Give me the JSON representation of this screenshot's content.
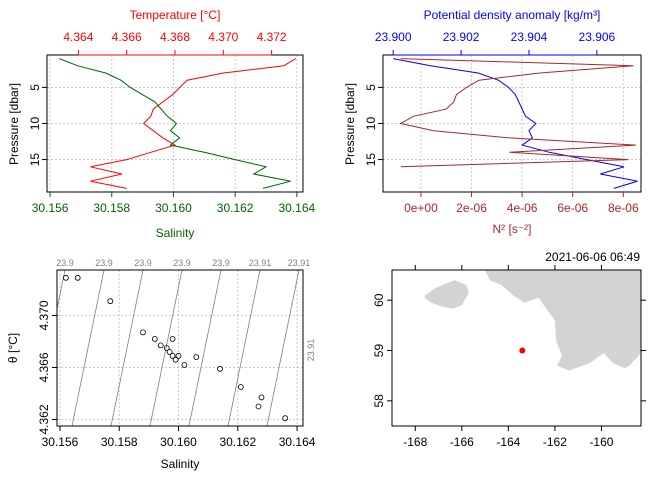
{
  "colors": {
    "temperature": "#ff0000",
    "salinity": "#006400",
    "density": "#0000ff",
    "n2": "#a52a2a",
    "land": "#d3d3d3",
    "station": "#ff0000",
    "grid": "#c8c8c8",
    "isopycnal": "#7f7f7f"
  },
  "chart_data": [
    {
      "type": "line",
      "panel": "temperature-salinity-profile",
      "title": "",
      "ylabel": "Pressure [dbar]",
      "ylim": [
        0.5,
        19.5
      ],
      "yticks": [
        "5",
        "10",
        "15"
      ],
      "grid": true,
      "top_axis": {
        "label": "Temperature [°C]",
        "lim": [
          4.3627,
          4.3733
        ],
        "ticks": [
          "4.364",
          "4.366",
          "4.368",
          "4.370",
          "4.372"
        ]
      },
      "bottom_axis": {
        "label": "Salinity",
        "lim": [
          30.1559,
          30.1642
        ],
        "ticks": [
          "30.156",
          "30.158",
          "30.160",
          "30.162",
          "30.164"
        ]
      },
      "series": [
        {
          "name": "Temperature [°C]",
          "axis": "top",
          "points": [
            [
              4.373,
              1
            ],
            [
              4.3725,
              2
            ],
            [
              4.37,
              3
            ],
            [
              4.3685,
              4
            ],
            [
              4.3682,
              5
            ],
            [
              4.3679,
              6
            ],
            [
              4.3675,
              7
            ],
            [
              4.3671,
              8
            ],
            [
              4.367,
              9
            ],
            [
              4.3667,
              10
            ],
            [
              4.3671,
              11
            ],
            [
              4.3675,
              12
            ],
            [
              4.368,
              13
            ],
            [
              4.367,
              14
            ],
            [
              4.366,
              15
            ],
            [
              4.3645,
              16
            ],
            [
              4.3658,
              17
            ],
            [
              4.3645,
              18
            ],
            [
              4.366,
              19
            ]
          ]
        },
        {
          "name": "Salinity",
          "axis": "bottom",
          "points": [
            [
              30.1563,
              1
            ],
            [
              30.1569,
              2
            ],
            [
              30.1578,
              3
            ],
            [
              30.1583,
              4
            ],
            [
              30.1586,
              5
            ],
            [
              30.159,
              6
            ],
            [
              30.1594,
              7
            ],
            [
              30.1596,
              8
            ],
            [
              30.1598,
              9
            ],
            [
              30.1601,
              10
            ],
            [
              30.1599,
              11
            ],
            [
              30.1602,
              12
            ],
            [
              30.1599,
              13
            ],
            [
              30.161,
              14
            ],
            [
              30.162,
              15
            ],
            [
              30.163,
              16
            ],
            [
              30.1626,
              17
            ],
            [
              30.1638,
              18
            ],
            [
              30.1629,
              19
            ]
          ]
        }
      ]
    },
    {
      "type": "line",
      "panel": "density-n2-profile",
      "title": "",
      "ylabel": "Pressure [dbar]",
      "ylim": [
        0.5,
        19.5
      ],
      "yticks": [
        "5",
        "10",
        "15"
      ],
      "grid": true,
      "top_axis": {
        "label": "Potential density anomaly [kg/m³]",
        "lim": [
          23.8997,
          23.9073
        ],
        "ticks": [
          "23.900",
          "23.902",
          "23.904",
          "23.906"
        ]
      },
      "bottom_axis": {
        "label": "N² [s⁻²]",
        "lim": [
          -1.5e-06,
          8.7e-06
        ],
        "ticks": [
          "0e+00",
          "2e-06",
          "4e-06",
          "6e-06",
          "8e-06"
        ]
      },
      "series": [
        {
          "name": "Potential density anomaly [kg/m³]",
          "axis": "top",
          "points": [
            [
              23.9,
              1
            ],
            [
              23.9011,
              2
            ],
            [
              23.9025,
              3
            ],
            [
              23.9031,
              4
            ],
            [
              23.9034,
              5
            ],
            [
              23.9036,
              6
            ],
            [
              23.9037,
              7
            ],
            [
              23.9038,
              8
            ],
            [
              23.9039,
              9
            ],
            [
              23.9042,
              10
            ],
            [
              23.904,
              11
            ],
            [
              23.9041,
              12
            ],
            [
              23.9038,
              13
            ],
            [
              23.9046,
              14
            ],
            [
              23.9057,
              15
            ],
            [
              23.9068,
              16
            ],
            [
              23.9061,
              17
            ],
            [
              23.9072,
              18
            ],
            [
              23.9065,
              19
            ]
          ]
        },
        {
          "name": "N² [s⁻²]",
          "axis": "bottom",
          "points": [
            [
              -8e-07,
              1
            ],
            [
              8.4e-06,
              2
            ],
            [
              4.7e-06,
              3
            ],
            [
              2.3e-06,
              4
            ],
            [
              1.8e-06,
              5
            ],
            [
              1.4e-06,
              6
            ],
            [
              1.3e-06,
              7
            ],
            [
              1e-06,
              8
            ],
            [
              -3e-07,
              9
            ],
            [
              -8e-07,
              10
            ],
            [
              5e-07,
              11
            ],
            [
              3.5e-06,
              12
            ],
            [
              8.5e-06,
              13
            ],
            [
              3.5e-06,
              14
            ],
            [
              8.2e-06,
              15
            ],
            [
              -8e-07,
              16
            ]
          ]
        }
      ]
    },
    {
      "type": "scatter",
      "panel": "ts-diagram",
      "title": "",
      "xlabel": "Salinity",
      "ylabel": "θ [°C]",
      "xlim": [
        30.1559,
        30.1642
      ],
      "ylim": [
        4.3615,
        4.3735
      ],
      "xticks": [
        "30.156",
        "30.158",
        "30.160",
        "30.162",
        "30.164"
      ],
      "yticks": [
        "4.362",
        "4.366",
        "4.370"
      ],
      "grid": true,
      "isopycnal_labels_top": [
        "23.9",
        "23.9",
        "23.9",
        "23.9",
        "23.9",
        "23.91",
        "23.91"
      ],
      "isopycnal_label_right": "23.91",
      "points": [
        [
          30.1562,
          4.3729
        ],
        [
          30.1566,
          4.3729
        ],
        [
          30.1577,
          4.3711
        ],
        [
          30.1588,
          4.3687
        ],
        [
          30.1592,
          4.3682
        ],
        [
          30.1594,
          4.3677
        ],
        [
          30.1596,
          4.3675
        ],
        [
          30.1597,
          4.3672
        ],
        [
          30.1598,
          4.3669
        ],
        [
          30.1599,
          4.3666
        ],
        [
          30.1598,
          4.3682
        ],
        [
          30.16,
          4.3669
        ],
        [
          30.1602,
          4.3662
        ],
        [
          30.1606,
          4.3668
        ],
        [
          30.1614,
          4.3659
        ],
        [
          30.1621,
          4.3645
        ],
        [
          30.1627,
          4.363
        ],
        [
          30.1628,
          4.3637
        ],
        [
          30.1636,
          4.3621
        ]
      ]
    },
    {
      "type": "scatter",
      "panel": "station-map",
      "title": "2021-06-06 06:49",
      "xlim": [
        -169.0,
        -158.3
      ],
      "ylim": [
        57.5,
        60.6
      ],
      "xticks": [
        "-168",
        "-166",
        "-164",
        "-162",
        "-160"
      ],
      "yticks": [
        "58",
        "59",
        "60"
      ],
      "grid": false,
      "station": {
        "lon": -163.4,
        "lat": 59.0
      },
      "land": [
        {
          "name": "island",
          "coords": [
            [
              -167.6,
              60.1
            ],
            [
              -167.1,
              60.25
            ],
            [
              -166.3,
              60.4
            ],
            [
              -165.8,
              60.3
            ],
            [
              -165.7,
              60.15
            ],
            [
              -166.0,
              59.9
            ],
            [
              -166.4,
              59.83
            ],
            [
              -166.9,
              59.88
            ],
            [
              -167.3,
              59.95
            ],
            [
              -167.6,
              60.05
            ]
          ]
        },
        {
          "name": "mainland",
          "coords": [
            [
              -165.0,
              60.6
            ],
            [
              -164.8,
              60.4
            ],
            [
              -164.3,
              60.3
            ],
            [
              -163.8,
              60.1
            ],
            [
              -163.3,
              59.95
            ],
            [
              -162.7,
              60.05
            ],
            [
              -162.4,
              59.85
            ],
            [
              -162.0,
              59.6
            ],
            [
              -161.95,
              59.2
            ],
            [
              -161.7,
              58.9
            ],
            [
              -161.9,
              58.7
            ],
            [
              -161.4,
              58.6
            ],
            [
              -160.5,
              58.75
            ],
            [
              -159.9,
              58.95
            ],
            [
              -159.5,
              58.75
            ],
            [
              -159.0,
              58.65
            ],
            [
              -158.8,
              58.7
            ],
            [
              -158.5,
              58.85
            ],
            [
              -158.3,
              58.95
            ],
            [
              -158.3,
              60.6
            ]
          ]
        }
      ]
    }
  ]
}
